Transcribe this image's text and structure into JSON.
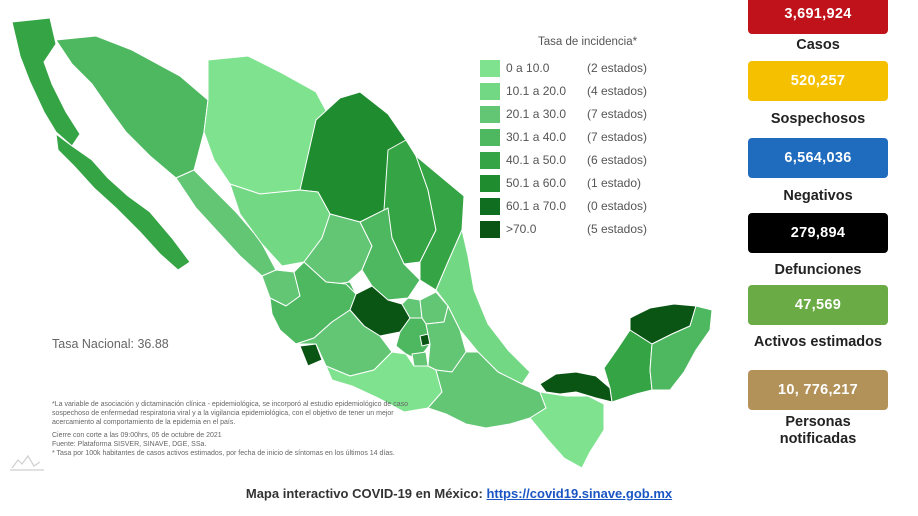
{
  "legend": {
    "title": "Tasa de incidencia*",
    "items": [
      {
        "range": "0  a  10.0",
        "count": "(2 estados)",
        "color": "#7fe28f"
      },
      {
        "range": "10.1  a  20.0",
        "count": "(4 estados)",
        "color": "#72d884"
      },
      {
        "range": "20.1  a  30.0",
        "count": "(7 estados)",
        "color": "#62c675"
      },
      {
        "range": "30.1  a  40.0",
        "count": "(7 estados)",
        "color": "#4db860"
      },
      {
        "range": "40.1  a  50.0",
        "count": "(6 estados)",
        "color": "#35a444"
      },
      {
        "range": "50.1  a  60.0",
        "count": "(1 estado)",
        "color": "#1f8c30"
      },
      {
        "range": "60.1  a  70.0",
        "count": "(0 estados)",
        "color": "#0f6e1f"
      },
      {
        "range": ">70.0",
        "count": "(5 estados)",
        "color": "#0a5514"
      }
    ]
  },
  "tasa_nacional": "Tasa Nacional: 36.88",
  "notes": [
    "*La variable de asociación y dictaminación clínica - epidemiológica, se incorporó al estudio epidemiológico de caso sospechoso de enfermedad respiratoria viral y a la vigilancia epidemiológica, con el objetivo de tener un mejor acercamiento al comportamiento de la epidemia en el país.",
    "Cierre con corte a las 09:00hrs, 05 de octubre de 2021",
    "Fuente: Plataforma SISVER, SINAVE, DGE, SSa.",
    "* Tasa por 100k habitantes de casos activos estimados, por fecha de inicio de síntomas en los últimos 14 días."
  ],
  "stats": [
    {
      "value": "3,691,924",
      "label": "Casos",
      "color": "#c0121b"
    },
    {
      "value": "520,257",
      "label": "Sospechosos",
      "color": "#f5c000"
    },
    {
      "value": "6,564,036",
      "label": "Negativos",
      "color": "#1f6bbd"
    },
    {
      "value": "279,894",
      "label": "Defunciones",
      "color": "#000000"
    },
    {
      "value": "47,569",
      "label": "Activos estimados",
      "color": "#6aab45"
    },
    {
      "value": "10, 776,217",
      "label": "Personas notificadas",
      "color": "#b3925a"
    }
  ],
  "footer": {
    "text": "Mapa interactivo COVID-19 en México: ",
    "link": "https://covid19.sinave.gob.mx"
  }
}
